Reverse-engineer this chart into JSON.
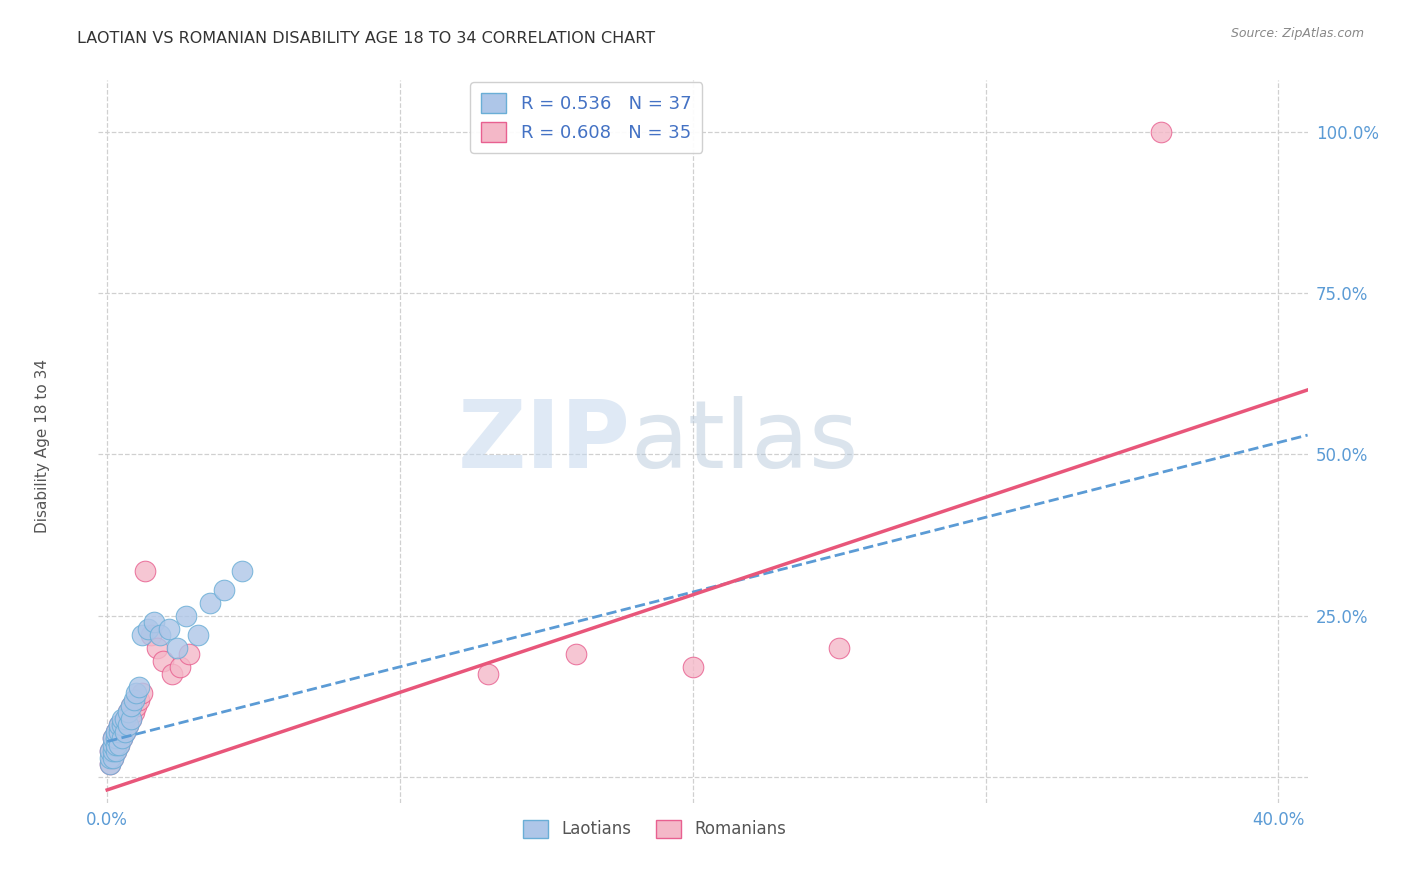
{
  "title": "LAOTIAN VS ROMANIAN DISABILITY AGE 18 TO 34 CORRELATION CHART",
  "source": "Source: ZipAtlas.com",
  "xlim": [
    -0.003,
    0.41
  ],
  "ylim": [
    -0.04,
    1.08
  ],
  "xlabel_vals": [
    0.0,
    0.1,
    0.2,
    0.3,
    0.4
  ],
  "ylabel_vals": [
    0.0,
    0.25,
    0.5,
    0.75,
    1.0
  ],
  "xlabel_ticks": [
    "0.0%",
    "",
    "",
    "",
    "40.0%"
  ],
  "ylabel_ticks": [
    "",
    "25.0%",
    "50.0%",
    "75.0%",
    "100.0%"
  ],
  "laotian_color": "#aec6e8",
  "romanian_color": "#f4b8c8",
  "laotian_edge_color": "#6aaed6",
  "romanian_edge_color": "#e86090",
  "trendline_laotian_color": "#5b9bd5",
  "trendline_romanian_color": "#e8567a",
  "R_laotian": 0.536,
  "N_laotian": 37,
  "R_romanian": 0.608,
  "N_romanian": 35,
  "legend_label_laotian": "Laotians",
  "legend_label_romanian": "Romanians",
  "ylabel": "Disability Age 18 to 34",
  "watermark_zip": "ZIP",
  "watermark_atlas": "atlas",
  "grid_color": "#d0d0d0",
  "laotian_x": [
    0.001,
    0.001,
    0.001,
    0.002,
    0.002,
    0.002,
    0.002,
    0.003,
    0.003,
    0.003,
    0.003,
    0.004,
    0.004,
    0.004,
    0.005,
    0.005,
    0.005,
    0.006,
    0.006,
    0.007,
    0.007,
    0.008,
    0.008,
    0.009,
    0.01,
    0.011,
    0.012,
    0.014,
    0.016,
    0.018,
    0.021,
    0.024,
    0.027,
    0.031,
    0.035,
    0.04,
    0.046
  ],
  "laotian_y": [
    0.02,
    0.03,
    0.04,
    0.03,
    0.04,
    0.05,
    0.06,
    0.04,
    0.05,
    0.06,
    0.07,
    0.05,
    0.07,
    0.08,
    0.06,
    0.08,
    0.09,
    0.07,
    0.09,
    0.08,
    0.1,
    0.09,
    0.11,
    0.12,
    0.13,
    0.14,
    0.22,
    0.23,
    0.24,
    0.22,
    0.23,
    0.2,
    0.25,
    0.22,
    0.27,
    0.29,
    0.32
  ],
  "romanian_x": [
    0.001,
    0.001,
    0.002,
    0.002,
    0.002,
    0.003,
    0.003,
    0.003,
    0.004,
    0.004,
    0.004,
    0.005,
    0.005,
    0.006,
    0.006,
    0.007,
    0.007,
    0.008,
    0.008,
    0.009,
    0.01,
    0.011,
    0.012,
    0.013,
    0.015,
    0.017,
    0.019,
    0.022,
    0.025,
    0.028,
    0.13,
    0.16,
    0.2,
    0.25,
    0.36
  ],
  "romanian_y": [
    0.02,
    0.04,
    0.03,
    0.05,
    0.06,
    0.04,
    0.05,
    0.07,
    0.05,
    0.06,
    0.08,
    0.06,
    0.08,
    0.07,
    0.09,
    0.08,
    0.1,
    0.09,
    0.11,
    0.1,
    0.11,
    0.12,
    0.13,
    0.32,
    0.22,
    0.2,
    0.18,
    0.16,
    0.17,
    0.19,
    0.16,
    0.19,
    0.17,
    0.2,
    1.0
  ],
  "trendline_lao_x0": 0.0,
  "trendline_lao_x1": 0.41,
  "trendline_lao_y0": 0.055,
  "trendline_lao_y1": 0.53,
  "trendline_rom_x0": 0.0,
  "trendline_rom_x1": 0.41,
  "trendline_rom_y0": -0.02,
  "trendline_rom_y1": 0.6
}
